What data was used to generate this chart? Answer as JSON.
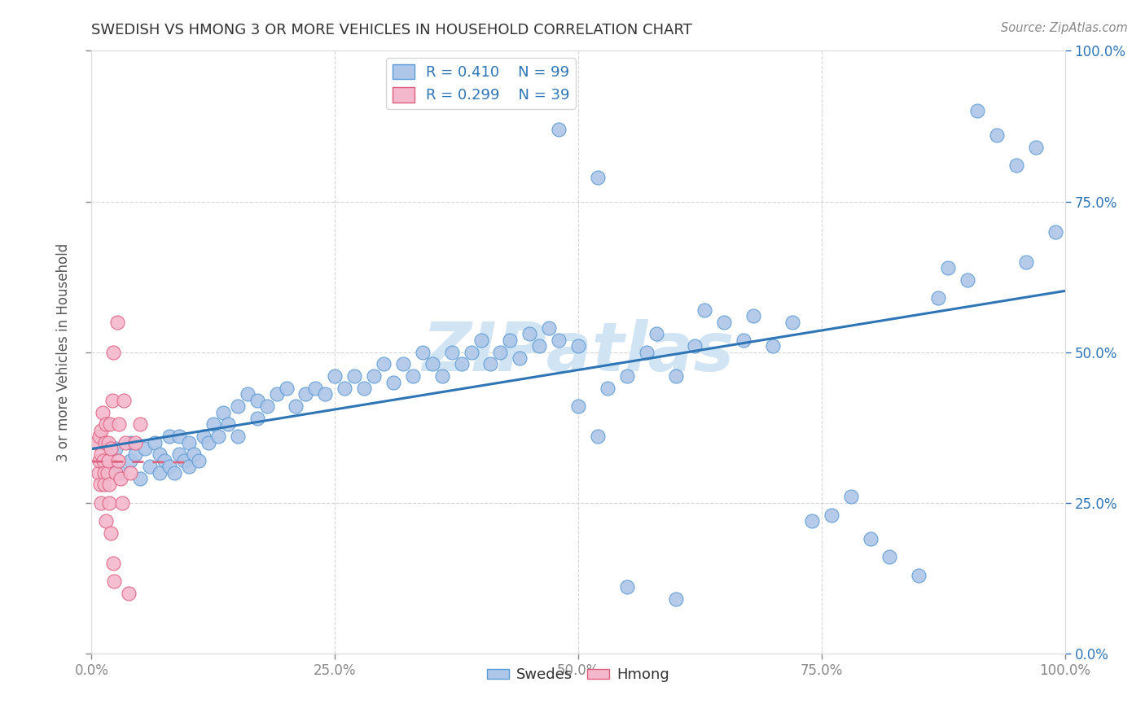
{
  "title": "SWEDISH VS HMONG 3 OR MORE VEHICLES IN HOUSEHOLD CORRELATION CHART",
  "source": "Source: ZipAtlas.com",
  "ylabel": "3 or more Vehicles in Household",
  "xlabel": "",
  "xlim": [
    0.0,
    1.0
  ],
  "ylim": [
    0.0,
    1.0
  ],
  "xtick_vals": [
    0.0,
    0.25,
    0.5,
    0.75,
    1.0
  ],
  "xtick_labels": [
    "0.0%",
    "25.0%",
    "50.0%",
    "75.0%",
    "100.0%"
  ],
  "ytick_vals": [
    0.0,
    0.25,
    0.5,
    0.75,
    1.0
  ],
  "ytick_labels": [
    "",
    "",
    "",
    "",
    ""
  ],
  "right_ytick_labels": [
    "0.0%",
    "25.0%",
    "50.0%",
    "75.0%",
    "100.0%"
  ],
  "swedish_R": 0.41,
  "swedish_N": 99,
  "hmong_R": 0.299,
  "hmong_N": 39,
  "swedish_color": "#aec6e8",
  "swedish_edge_color": "#5b9bd5",
  "swedish_line_color": "#2e75b6",
  "hmong_color": "#f4b8cc",
  "hmong_edge_color": "#e06080",
  "hmong_line_color": "#e06080",
  "legend_text_color": "#2e75b6",
  "right_axis_color": "#2e75b6",
  "watermark_color": "#d0e4f4",
  "grid_color": "#cccccc",
  "title_color": "#333333",
  "source_color": "#888888",
  "sw_line_start_y": 0.3,
  "sw_line_end_y": 0.6,
  "swedish_x": [
    0.02,
    0.025,
    0.03,
    0.04,
    0.04,
    0.045,
    0.05,
    0.055,
    0.06,
    0.065,
    0.07,
    0.07,
    0.075,
    0.08,
    0.08,
    0.085,
    0.09,
    0.09,
    0.095,
    0.1,
    0.1,
    0.105,
    0.11,
    0.115,
    0.12,
    0.125,
    0.13,
    0.135,
    0.14,
    0.15,
    0.15,
    0.16,
    0.17,
    0.17,
    0.18,
    0.19,
    0.2,
    0.21,
    0.22,
    0.23,
    0.24,
    0.25,
    0.26,
    0.27,
    0.28,
    0.29,
    0.3,
    0.31,
    0.32,
    0.33,
    0.34,
    0.35,
    0.36,
    0.37,
    0.38,
    0.39,
    0.4,
    0.41,
    0.42,
    0.43,
    0.44,
    0.45,
    0.46,
    0.47,
    0.48,
    0.5,
    0.5,
    0.52,
    0.53,
    0.55,
    0.57,
    0.58,
    0.6,
    0.62,
    0.63,
    0.65,
    0.67,
    0.68,
    0.7,
    0.72,
    0.74,
    0.76,
    0.78,
    0.8,
    0.82,
    0.85,
    0.87,
    0.88,
    0.9,
    0.91,
    0.93,
    0.95,
    0.96,
    0.97,
    0.99,
    0.48,
    0.52,
    0.55,
    0.6
  ],
  "swedish_y": [
    0.31,
    0.34,
    0.3,
    0.32,
    0.35,
    0.33,
    0.29,
    0.34,
    0.31,
    0.35,
    0.3,
    0.33,
    0.32,
    0.31,
    0.36,
    0.3,
    0.33,
    0.36,
    0.32,
    0.31,
    0.35,
    0.33,
    0.32,
    0.36,
    0.35,
    0.38,
    0.36,
    0.4,
    0.38,
    0.36,
    0.41,
    0.43,
    0.39,
    0.42,
    0.41,
    0.43,
    0.44,
    0.41,
    0.43,
    0.44,
    0.43,
    0.46,
    0.44,
    0.46,
    0.44,
    0.46,
    0.48,
    0.45,
    0.48,
    0.46,
    0.5,
    0.48,
    0.46,
    0.5,
    0.48,
    0.5,
    0.52,
    0.48,
    0.5,
    0.52,
    0.49,
    0.53,
    0.51,
    0.54,
    0.52,
    0.51,
    0.41,
    0.36,
    0.44,
    0.46,
    0.5,
    0.53,
    0.46,
    0.51,
    0.57,
    0.55,
    0.52,
    0.56,
    0.51,
    0.55,
    0.22,
    0.23,
    0.26,
    0.19,
    0.16,
    0.13,
    0.59,
    0.64,
    0.62,
    0.9,
    0.86,
    0.81,
    0.65,
    0.84,
    0.7,
    0.87,
    0.79,
    0.11,
    0.09
  ],
  "hmong_x": [
    0.005,
    0.007,
    0.008,
    0.008,
    0.009,
    0.01,
    0.01,
    0.01,
    0.011,
    0.012,
    0.013,
    0.013,
    0.014,
    0.015,
    0.015,
    0.016,
    0.017,
    0.017,
    0.018,
    0.018,
    0.019,
    0.02,
    0.02,
    0.021,
    0.022,
    0.022,
    0.023,
    0.025,
    0.026,
    0.027,
    0.028,
    0.03,
    0.031,
    0.033,
    0.035,
    0.038,
    0.04,
    0.045,
    0.05
  ],
  "hmong_y": [
    0.35,
    0.3,
    0.32,
    0.36,
    0.28,
    0.33,
    0.37,
    0.25,
    0.4,
    0.32,
    0.3,
    0.28,
    0.35,
    0.22,
    0.38,
    0.3,
    0.32,
    0.35,
    0.28,
    0.25,
    0.38,
    0.34,
    0.2,
    0.42,
    0.15,
    0.5,
    0.12,
    0.3,
    0.55,
    0.32,
    0.38,
    0.29,
    0.25,
    0.42,
    0.35,
    0.1,
    0.3,
    0.35,
    0.38
  ]
}
